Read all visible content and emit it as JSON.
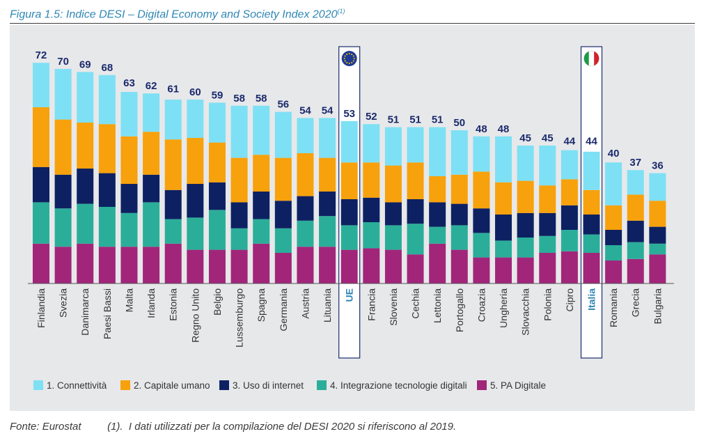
{
  "figure": {
    "title": "Figura 1.5: Indice DESI – Digital Economy and Society Index 2020",
    "title_note": "(1)",
    "source_label": "Fonte: Eurostat",
    "source_note": "(1).  I dati utilizzati per la compilazione del DESI 2020 si riferiscono al 2019."
  },
  "colors": {
    "panel_background": "#e7e8ea",
    "title": "#2f87b5",
    "total_labels": "#1a2a6c",
    "highlight_label": "#2f87b5",
    "highlight_border": "#1a2a6c"
  },
  "chart_data": {
    "type": "bar",
    "stacked": true,
    "ylim": [
      0,
      80
    ],
    "grid": false,
    "legend_position": "bottom",
    "categories": [
      "Finlandia",
      "Svezia",
      "Danimarca",
      "Paesi Bassi",
      "Malta",
      "Irlanda",
      "Estonia",
      "Regno Unito",
      "Belgio",
      "Lussemburgo",
      "Spagna",
      "Germania",
      "Austria",
      "Lituania",
      "UE",
      "Francia",
      "Slovenia",
      "Cechia",
      "Lettonia",
      "Portogallo",
      "Croazia",
      "Ungheria",
      "Slovacchia",
      "Polonia",
      "Cipro",
      "Italia",
      "Romania",
      "Grecia",
      "Bulgaria"
    ],
    "totals": [
      72,
      70,
      69,
      68,
      63,
      62,
      61,
      60,
      59,
      58,
      58,
      56,
      54,
      54,
      53,
      52,
      51,
      51,
      51,
      50,
      48,
      48,
      45,
      45,
      44,
      44,
      40,
      37,
      36
    ],
    "highlighted": [
      {
        "category": "UE",
        "icon": "eu-flag-icon"
      },
      {
        "category": "Italia",
        "icon": "italy-flag-icon"
      }
    ],
    "series": [
      {
        "name": "5. PA Digitale",
        "color": "#a1267a",
        "values": [
          13,
          12,
          13,
          12,
          12,
          12,
          13,
          11,
          11,
          11,
          13,
          10,
          12,
          12,
          11,
          11.5,
          11,
          9.5,
          13,
          11,
          8.5,
          8.5,
          8.5,
          10,
          10.5,
          10,
          7.5,
          8,
          9.5
        ]
      },
      {
        "name": "4. Integrazione tecnologie digitali",
        "color": "#2bae99",
        "values": [
          13.5,
          12.5,
          13,
          13,
          11,
          14.5,
          8,
          10.5,
          13,
          7,
          8,
          8,
          8.5,
          10,
          8,
          8.5,
          8,
          10,
          5.5,
          8,
          8,
          5.5,
          6.5,
          5.5,
          7,
          6,
          5,
          5.5,
          3.5
        ]
      },
      {
        "name": "3. Uso di internet",
        "color": "#0d2162",
        "values": [
          11.5,
          11,
          11.5,
          11,
          9.5,
          9,
          9.5,
          11,
          9,
          8.5,
          9,
          9,
          8,
          8,
          8.5,
          8,
          7.5,
          8,
          8,
          7,
          8,
          8.5,
          8,
          7.5,
          8,
          6.5,
          5,
          7,
          5.5
        ]
      },
      {
        "name": "2. Capitale umano",
        "color": "#f7a10c",
        "values": [
          19.5,
          18,
          15,
          16,
          15.5,
          14,
          16.5,
          15,
          13,
          14.5,
          12,
          14,
          14,
          11,
          12,
          11.5,
          12,
          12,
          8.5,
          9.5,
          12,
          10.5,
          10.5,
          9,
          8.5,
          8,
          8,
          8.5,
          8.5
        ]
      },
      {
        "name": "1. Connettività",
        "color": "#7ee0f4",
        "values": [
          14.5,
          16.5,
          16.5,
          16,
          14.5,
          12.5,
          13,
          12.5,
          13,
          17,
          16,
          15,
          11.5,
          13,
          13.5,
          12.5,
          12.5,
          11.5,
          16,
          14.5,
          11.5,
          15,
          11.5,
          13,
          9.5,
          12.5,
          14,
          8,
          9
        ]
      }
    ]
  }
}
